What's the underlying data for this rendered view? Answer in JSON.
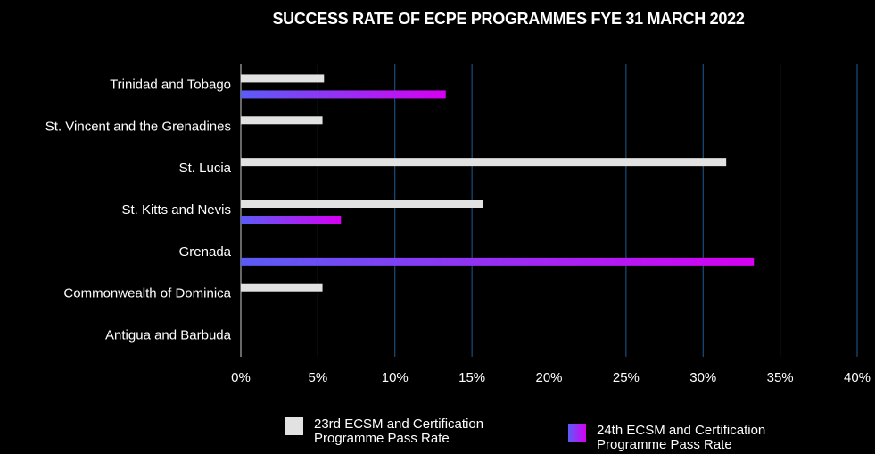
{
  "chart_data": {
    "type": "hbar",
    "title": "SUCCESS RATE OF ECPE PROGRAMMES FYE 31 MARCH 2022",
    "categories": [
      "Trinidad and Tobago",
      "St. Vincent and the Grenadines",
      "St. Lucia",
      "St. Kitts and Nevis",
      "Grenada",
      "Commonwealth of Dominica",
      "Antigua and Barbuda"
    ],
    "series": [
      {
        "name": "23rd ECSM and Certification Programme Pass Rate",
        "color": "#e2e2e2",
        "values": [
          5.4,
          5.3,
          31.5,
          15.7,
          0,
          5.3,
          0
        ]
      },
      {
        "name": "24th ECSM and Certification Programme Pass Rate",
        "color": "#cc00f0",
        "gradient": [
          "#5b5cf6",
          "#d600f2"
        ],
        "values": [
          13.3,
          0,
          0,
          6.5,
          33.3,
          0,
          0
        ]
      }
    ],
    "xlim": [
      0,
      40
    ],
    "xticks": [
      {
        "value": 0,
        "label": "0%"
      },
      {
        "value": 5,
        "label": "5%"
      },
      {
        "value": 10,
        "label": "10%"
      },
      {
        "value": 15,
        "label": "15%"
      },
      {
        "value": 20,
        "label": "20%"
      },
      {
        "value": 25,
        "label": "25%"
      },
      {
        "value": 30,
        "label": "30%"
      },
      {
        "value": 35,
        "label": "35%"
      },
      {
        "value": 40,
        "label": "40%"
      }
    ],
    "grid": true,
    "legend": "bottom"
  }
}
